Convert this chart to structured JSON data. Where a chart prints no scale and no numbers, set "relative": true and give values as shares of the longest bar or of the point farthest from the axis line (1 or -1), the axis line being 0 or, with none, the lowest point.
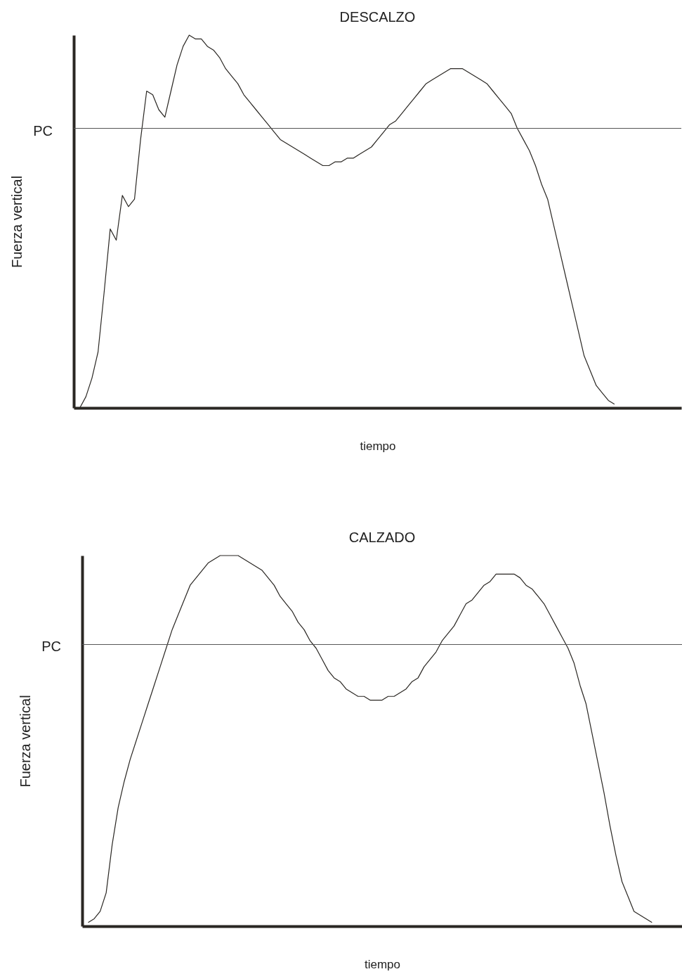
{
  "chart_data": [
    {
      "type": "line",
      "title": "DESCALZO",
      "xlabel": "tiempo",
      "ylabel": "Fuerza vertical",
      "relative": true,
      "marker": "none",
      "line_style": "solid",
      "categories": [
        null,
        null,
        null,
        null,
        null,
        null,
        null,
        null,
        null,
        null,
        null,
        null,
        null,
        null,
        null,
        null,
        null,
        null,
        null,
        null,
        null,
        null,
        null,
        null,
        null,
        null,
        null,
        null,
        null,
        null,
        null,
        null,
        null,
        null,
        null,
        null,
        null,
        null,
        null,
        null,
        null,
        null,
        null,
        null,
        null,
        null,
        null,
        null,
        null,
        null,
        null,
        null,
        null,
        null,
        null,
        null,
        null,
        null,
        null,
        null,
        null,
        null,
        null,
        null,
        null,
        null,
        null,
        null,
        null,
        null,
        null,
        null,
        null,
        null,
        null,
        null,
        null,
        null,
        null,
        null,
        null,
        null,
        null,
        null,
        null,
        null,
        null,
        null,
        null,
        null,
        null,
        null,
        null,
        null,
        null,
        null,
        null,
        null,
        null,
        null,
        null
      ],
      "series": [
        {
          "color": "#2a2723",
          "values": [
            null,
            0,
            0.03,
            0.08,
            0.15,
            0.31,
            0.48,
            0.45,
            0.57,
            0.54,
            0.56,
            0.72,
            0.85,
            0.84,
            0.8,
            0.78,
            0.85,
            0.92,
            0.97,
            1,
            0.99,
            0.99,
            0.97,
            0.96,
            0.94,
            0.91,
            0.89,
            0.87,
            0.84,
            0.82,
            0.8,
            0.78,
            0.76,
            0.74,
            0.72,
            0.71,
            0.7,
            0.69,
            0.68,
            0.67,
            0.66,
            0.65,
            0.65,
            0.66,
            0.66,
            0.67,
            0.67,
            0.68,
            0.69,
            0.7,
            0.72,
            0.74,
            0.76,
            0.77,
            0.79,
            0.81,
            0.83,
            0.85,
            0.87,
            0.88,
            0.89,
            0.9,
            0.91,
            0.91,
            0.91,
            0.9,
            0.89,
            0.88,
            0.87,
            0.85,
            0.83,
            0.81,
            0.79,
            0.75,
            0.72,
            0.69,
            0.65,
            0.6,
            0.56,
            0.49,
            0.42,
            0.35,
            0.28,
            0.21,
            0.14,
            0.1,
            0.06,
            0.04,
            0.02,
            0.01,
            null,
            null,
            null,
            null,
            null,
            null,
            null,
            null,
            null,
            null,
            null
          ]
        }
      ],
      "ref_lines": [
        {
          "axis": "y",
          "value": 0.75,
          "label": "PC",
          "color": "#555555"
        }
      ]
    },
    {
      "type": "line",
      "title": "CALZADO",
      "xlabel": "tiempo",
      "ylabel": "Fuerza vertical",
      "relative": true,
      "marker": "none",
      "line_style": "solid",
      "categories": [
        null,
        null,
        null,
        null,
        null,
        null,
        null,
        null,
        null,
        null,
        null,
        null,
        null,
        null,
        null,
        null,
        null,
        null,
        null,
        null,
        null,
        null,
        null,
        null,
        null,
        null,
        null,
        null,
        null,
        null,
        null,
        null,
        null,
        null,
        null,
        null,
        null,
        null,
        null,
        null,
        null,
        null,
        null,
        null,
        null,
        null,
        null,
        null,
        null,
        null,
        null,
        null,
        null,
        null,
        null,
        null,
        null,
        null,
        null,
        null,
        null,
        null,
        null,
        null,
        null,
        null,
        null,
        null,
        null,
        null,
        null,
        null,
        null,
        null,
        null,
        null,
        null,
        null,
        null,
        null,
        null,
        null,
        null,
        null,
        null,
        null,
        null,
        null,
        null,
        null,
        null,
        null,
        null,
        null,
        null,
        null,
        null,
        null,
        null,
        null,
        null
      ],
      "series": [
        {
          "color": "#2a2723",
          "values": [
            null,
            0.01,
            0.02,
            0.04,
            0.09,
            0.22,
            0.32,
            0.39,
            0.45,
            0.5,
            0.55,
            0.6,
            0.65,
            0.7,
            0.75,
            0.8,
            0.84,
            0.88,
            0.92,
            0.94,
            0.96,
            0.98,
            0.99,
            1,
            1,
            1,
            1,
            0.99,
            0.98,
            0.97,
            0.96,
            0.94,
            0.92,
            0.89,
            0.87,
            0.85,
            0.82,
            0.8,
            0.77,
            0.75,
            0.72,
            0.69,
            0.67,
            0.66,
            0.64,
            0.63,
            0.62,
            0.62,
            0.61,
            0.61,
            0.61,
            0.62,
            0.62,
            0.63,
            0.64,
            0.66,
            0.67,
            0.7,
            0.72,
            0.74,
            0.77,
            0.79,
            0.81,
            0.84,
            0.87,
            0.88,
            0.9,
            0.92,
            0.93,
            0.95,
            0.95,
            0.95,
            0.95,
            0.94,
            0.92,
            0.91,
            0.89,
            0.87,
            0.84,
            0.81,
            0.78,
            0.75,
            0.71,
            0.65,
            0.6,
            0.52,
            0.44,
            0.36,
            0.27,
            0.19,
            0.12,
            0.08,
            0.04,
            0.03,
            0.02,
            0.01,
            null,
            null,
            null,
            null,
            null
          ]
        }
      ],
      "ref_lines": [
        {
          "axis": "y",
          "value": 0.76,
          "label": "PC",
          "color": "#555555"
        }
      ]
    }
  ]
}
